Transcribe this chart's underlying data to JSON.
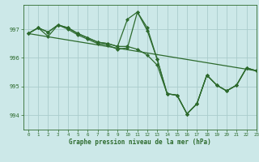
{
  "title": "Graphe pression niveau de la mer (hPa)",
  "background_color": "#cce8e8",
  "grid_color": "#aacccc",
  "line_color": "#2d6a2d",
  "xlim": [
    -0.5,
    23
  ],
  "ylim": [
    993.5,
    997.85
  ],
  "yticks": [
    994,
    995,
    996,
    997
  ],
  "xticks": [
    0,
    1,
    2,
    3,
    4,
    5,
    6,
    7,
    8,
    9,
    10,
    11,
    12,
    13,
    14,
    15,
    16,
    17,
    18,
    19,
    20,
    21,
    22,
    23
  ],
  "line_straight": {
    "x": [
      0,
      23
    ],
    "y": [
      996.85,
      995.55
    ]
  },
  "line_wavy1": {
    "x": [
      0,
      1,
      2,
      3,
      4,
      5,
      6,
      7,
      8,
      9,
      10,
      11,
      12,
      13,
      14,
      15,
      16,
      17,
      18,
      19,
      20,
      21,
      22,
      23
    ],
    "y": [
      996.85,
      997.05,
      996.9,
      997.15,
      997.05,
      996.85,
      996.7,
      996.55,
      996.5,
      996.4,
      997.35,
      997.6,
      996.95,
      995.95,
      994.75,
      994.7,
      994.05,
      994.4,
      995.4,
      995.05,
      994.85,
      995.05,
      995.65,
      995.55
    ]
  },
  "line_wavy2": {
    "x": [
      0,
      1,
      2,
      3,
      4,
      5,
      6,
      7,
      8,
      9,
      10,
      11,
      12,
      13,
      14,
      15,
      16,
      17,
      18,
      19,
      20,
      21,
      22,
      23
    ],
    "y": [
      996.85,
      997.05,
      996.9,
      997.15,
      997.05,
      996.85,
      996.7,
      996.55,
      996.5,
      996.4,
      996.4,
      996.3,
      996.1,
      995.75,
      994.75,
      994.7,
      994.05,
      994.4,
      995.4,
      995.05,
      994.85,
      995.05,
      995.65,
      995.55
    ]
  },
  "line_wavy3": {
    "x": [
      0,
      1,
      2,
      3,
      4,
      5,
      6,
      7,
      8,
      9,
      10,
      11,
      12,
      13,
      14,
      15,
      16,
      17,
      18,
      19,
      20,
      21,
      22,
      23
    ],
    "y": [
      996.85,
      997.05,
      996.75,
      997.15,
      997.0,
      996.8,
      996.65,
      996.5,
      996.45,
      996.3,
      996.35,
      997.6,
      997.05,
      995.95,
      994.75,
      994.7,
      994.05,
      994.4,
      995.4,
      995.05,
      994.85,
      995.05,
      995.65,
      995.55
    ]
  }
}
